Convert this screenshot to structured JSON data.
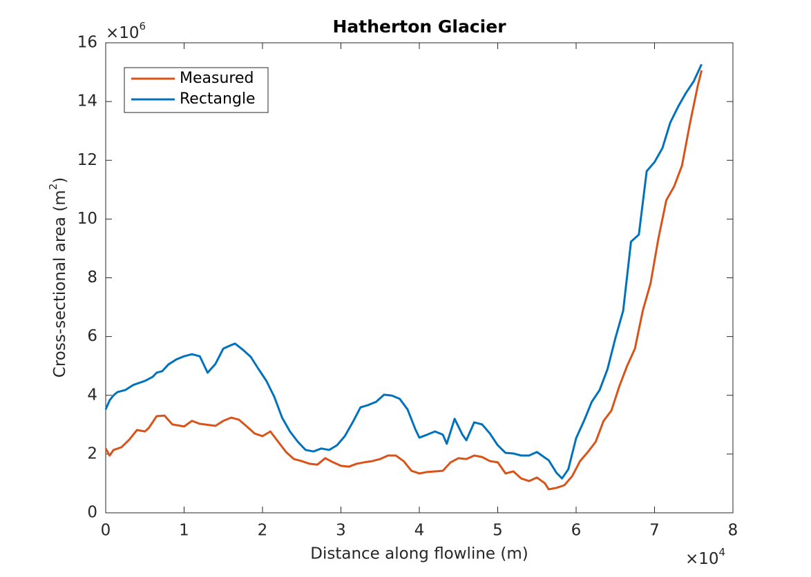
{
  "chart_data": {
    "type": "line",
    "title": "Hatherton Glacier",
    "xlabel": "Distance along flowline (m)",
    "ylabel": [
      "Cross-sectional area (m",
      "2",
      ")"
    ],
    "x_multiplier": [
      "×10",
      "4"
    ],
    "y_multiplier": [
      "×10",
      "6"
    ],
    "xlim": [
      0,
      8
    ],
    "xticks": [
      0,
      1,
      2,
      3,
      4,
      5,
      6,
      7,
      8
    ],
    "ylim": [
      0,
      16
    ],
    "yticks": [
      0,
      2,
      4,
      6,
      8,
      10,
      12,
      14,
      16
    ],
    "legend": "upper left",
    "series": [
      {
        "name": "Measured",
        "color": "#d95319",
        "x": [
          0,
          0.05,
          0.1,
          0.2,
          0.3,
          0.4,
          0.5,
          0.55,
          0.65,
          0.75,
          0.85,
          1.0,
          1.1,
          1.2,
          1.4,
          1.5,
          1.6,
          1.7,
          1.8,
          1.9,
          2.0,
          2.1,
          2.2,
          2.3,
          2.4,
          2.5,
          2.6,
          2.7,
          2.8,
          2.9,
          3.0,
          3.1,
          3.2,
          3.3,
          3.4,
          3.5,
          3.6,
          3.7,
          3.8,
          3.9,
          4.0,
          4.1,
          4.2,
          4.3,
          4.4,
          4.5,
          4.6,
          4.7,
          4.8,
          4.9,
          5.0,
          5.1,
          5.2,
          5.3,
          5.4,
          5.5,
          5.6,
          5.65,
          5.75,
          5.85,
          5.95,
          6.05,
          6.15,
          6.25,
          6.35,
          6.45,
          6.55,
          6.65,
          6.75,
          6.85,
          6.95,
          7.05,
          7.15,
          7.25,
          7.35,
          7.45,
          7.55,
          7.6
        ],
        "values": [
          2.19,
          1.95,
          2.14,
          2.23,
          2.49,
          2.82,
          2.77,
          2.89,
          3.29,
          3.31,
          3.01,
          2.94,
          3.13,
          3.03,
          2.96,
          3.13,
          3.24,
          3.17,
          2.94,
          2.7,
          2.61,
          2.77,
          2.42,
          2.07,
          1.83,
          1.76,
          1.67,
          1.64,
          1.86,
          1.72,
          1.6,
          1.57,
          1.67,
          1.72,
          1.76,
          1.83,
          1.95,
          1.95,
          1.76,
          1.43,
          1.34,
          1.39,
          1.41,
          1.43,
          1.72,
          1.86,
          1.83,
          1.95,
          1.9,
          1.76,
          1.72,
          1.34,
          1.41,
          1.17,
          1.08,
          1.2,
          1.01,
          0.8,
          0.85,
          0.94,
          1.25,
          1.76,
          2.07,
          2.42,
          3.13,
          3.48,
          4.3,
          5.0,
          5.59,
          6.88,
          7.82,
          9.35,
          10.64,
          11.11,
          11.82,
          13.23,
          14.52,
          15.06
        ]
      },
      {
        "name": "Rectangle",
        "color": "#0072bd",
        "x": [
          0,
          0.05,
          0.1,
          0.15,
          0.25,
          0.35,
          0.5,
          0.6,
          0.65,
          0.72,
          0.8,
          0.9,
          1.0,
          1.1,
          1.2,
          1.3,
          1.4,
          1.5,
          1.6,
          1.65,
          1.75,
          1.85,
          1.95,
          2.05,
          2.15,
          2.25,
          2.35,
          2.45,
          2.55,
          2.65,
          2.75,
          2.85,
          2.95,
          3.05,
          3.15,
          3.25,
          3.35,
          3.45,
          3.55,
          3.65,
          3.75,
          3.85,
          3.95,
          4.0,
          4.1,
          4.2,
          4.3,
          4.35,
          4.45,
          4.55,
          4.6,
          4.7,
          4.8,
          4.9,
          5.0,
          5.1,
          5.2,
          5.3,
          5.4,
          5.5,
          5.6,
          5.65,
          5.75,
          5.82,
          5.9,
          6.0,
          6.1,
          6.2,
          6.3,
          6.4,
          6.5,
          6.6,
          6.7,
          6.8,
          6.9,
          7.0,
          7.1,
          7.2,
          7.3,
          7.4,
          7.5,
          7.6
        ],
        "values": [
          3.52,
          3.83,
          4.0,
          4.11,
          4.18,
          4.35,
          4.49,
          4.63,
          4.77,
          4.82,
          5.05,
          5.22,
          5.33,
          5.4,
          5.33,
          4.77,
          5.07,
          5.59,
          5.71,
          5.76,
          5.55,
          5.31,
          4.89,
          4.49,
          3.95,
          3.24,
          2.77,
          2.42,
          2.14,
          2.09,
          2.19,
          2.14,
          2.3,
          2.61,
          3.08,
          3.59,
          3.67,
          3.78,
          4.02,
          3.99,
          3.88,
          3.52,
          2.84,
          2.56,
          2.66,
          2.77,
          2.66,
          2.35,
          3.2,
          2.66,
          2.47,
          3.08,
          3.01,
          2.7,
          2.3,
          2.04,
          2.02,
          1.95,
          1.95,
          2.07,
          1.88,
          1.79,
          1.36,
          1.17,
          1.48,
          2.54,
          3.13,
          3.78,
          4.18,
          4.89,
          5.94,
          6.88,
          9.23,
          9.47,
          11.63,
          11.94,
          12.41,
          13.28,
          13.82,
          14.29,
          14.69,
          15.27
        ]
      }
    ]
  }
}
